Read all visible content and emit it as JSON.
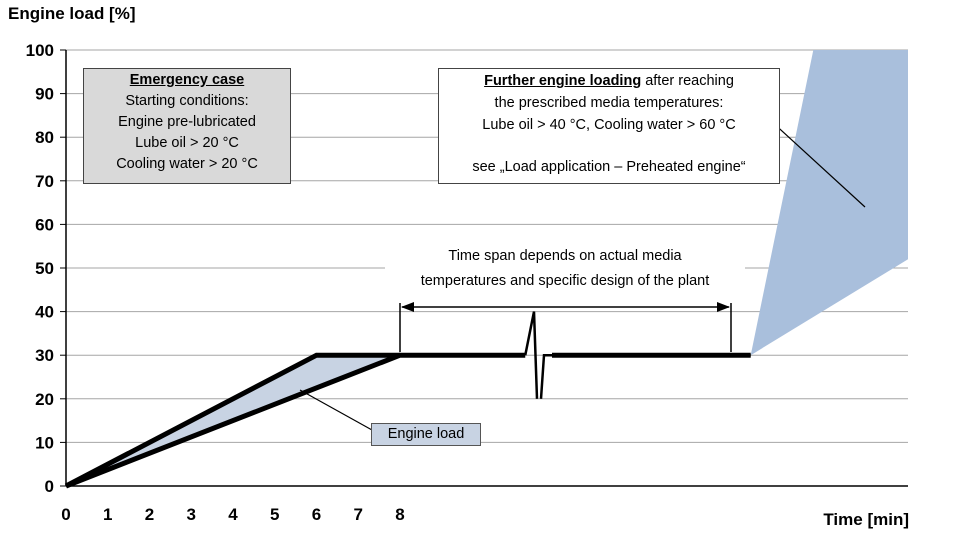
{
  "chart_data": {
    "type": "line",
    "title": "Engine load [%]",
    "xlabel": "Time [min]",
    "ylabel": "Engine load [%]",
    "ylim": [
      0,
      100
    ],
    "xlim": [
      0,
      20
    ],
    "y_ticks": [
      "0",
      "10",
      "20",
      "30",
      "40",
      "50",
      "60",
      "70",
      "80",
      "90",
      "100"
    ],
    "x_ticks": [
      "0",
      "1",
      "2",
      "3",
      "4",
      "5",
      "6",
      "7",
      "8"
    ],
    "grid": "horizontal",
    "series": [
      {
        "values": [
          [
            0,
            0
          ],
          [
            6,
            30
          ],
          [
            8,
            30
          ]
        ]
      },
      {
        "values": [
          [
            0,
            0
          ],
          [
            8,
            30
          ],
          [
            11,
            30
          ],
          [
            16.4,
            30
          ]
        ]
      }
    ],
    "shaded_band": {
      "color": "#c8d3e3"
    },
    "further_loading_region": {
      "color": "#a9bfdc"
    },
    "annotations": {
      "emergency_box": {
        "heading": "Emergency case",
        "lines": [
          "Starting conditions:",
          "Engine pre-lubricated",
          "Lube oil > 20 °C",
          "Cooling water > 20 °C"
        ]
      },
      "further_box": {
        "heading": "Further engine loading",
        "heading_suffix": " after reaching",
        "lines": [
          "the prescribed  media temperatures:",
          "Lube oil > 40 °C, Cooling water > 60 °C",
          "see „Load application – Preheated engine“"
        ]
      },
      "time_span": [
        "Time span depends on actual media",
        "temperatures and specific design of the plant"
      ],
      "engine_load_label": "Engine load"
    }
  }
}
